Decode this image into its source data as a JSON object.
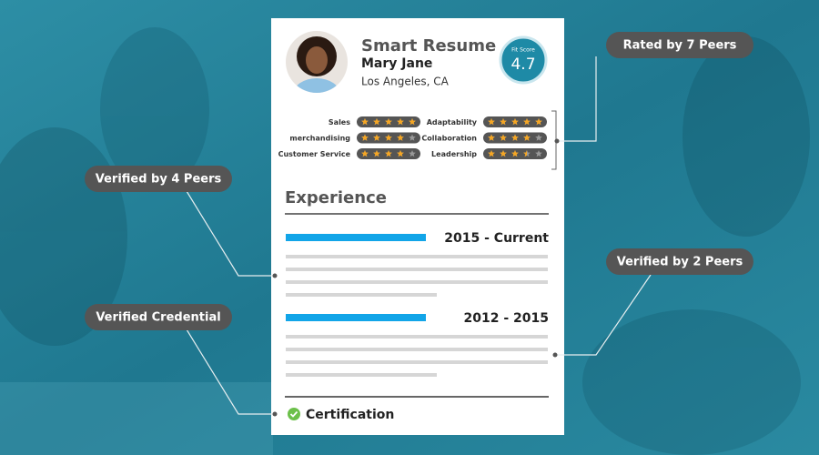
{
  "card": {
    "title": "Smart Resume",
    "name": "Mary Jane",
    "location": "Los Angeles, CA",
    "fit_score_label": "Fit Score",
    "fit_score": 4.7,
    "skills": [
      {
        "name": "Sales",
        "rating": 5
      },
      {
        "name": "merchandising",
        "rating": 4
      },
      {
        "name": "Customer Service",
        "rating": 4
      },
      {
        "name": "Adaptability",
        "rating": 5
      },
      {
        "name": "Collaboration",
        "rating": 4
      },
      {
        "name": "Leadership",
        "rating": 3.5
      }
    ],
    "section": "Experience",
    "jobs": [
      {
        "years": "2015 - Current"
      },
      {
        "years": "2012 - 2015"
      }
    ],
    "certification": "Certification"
  },
  "callouts": [
    "Rated by 7 Peers",
    "Verified by 4 Peers",
    "Verified by 2 Peers",
    "Verified Credential"
  ]
}
